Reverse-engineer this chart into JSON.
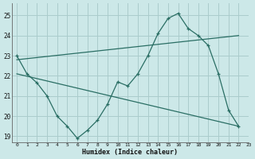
{
  "line1_x": [
    0,
    1,
    2,
    3,
    4,
    5,
    6,
    7,
    8,
    9,
    10,
    11,
    12,
    13,
    14,
    15,
    16,
    17,
    18,
    19,
    20,
    21,
    22
  ],
  "line1_y": [
    23.0,
    22.1,
    21.65,
    21.0,
    20.0,
    19.5,
    18.9,
    19.3,
    19.8,
    20.6,
    21.7,
    21.5,
    22.1,
    23.0,
    24.1,
    24.85,
    25.1,
    24.35,
    24.0,
    23.5,
    22.1,
    20.3,
    19.5
  ],
  "line2_x": [
    0,
    22
  ],
  "line2_y": [
    22.8,
    24.0
  ],
  "line3_x": [
    0,
    22
  ],
  "line3_y": [
    22.1,
    19.5
  ],
  "line_color": "#2a6e64",
  "bg_color": "#cce8e8",
  "grid_color": "#aacccc",
  "xlabel": "Humidex (Indice chaleur)",
  "ylim": [
    18.7,
    25.6
  ],
  "xlim": [
    -0.5,
    23.0
  ],
  "yticks": [
    19,
    20,
    21,
    22,
    23,
    24,
    25
  ],
  "xticks": [
    0,
    1,
    2,
    3,
    4,
    5,
    6,
    7,
    8,
    9,
    10,
    11,
    12,
    13,
    14,
    15,
    16,
    17,
    18,
    19,
    20,
    21,
    22,
    23
  ]
}
